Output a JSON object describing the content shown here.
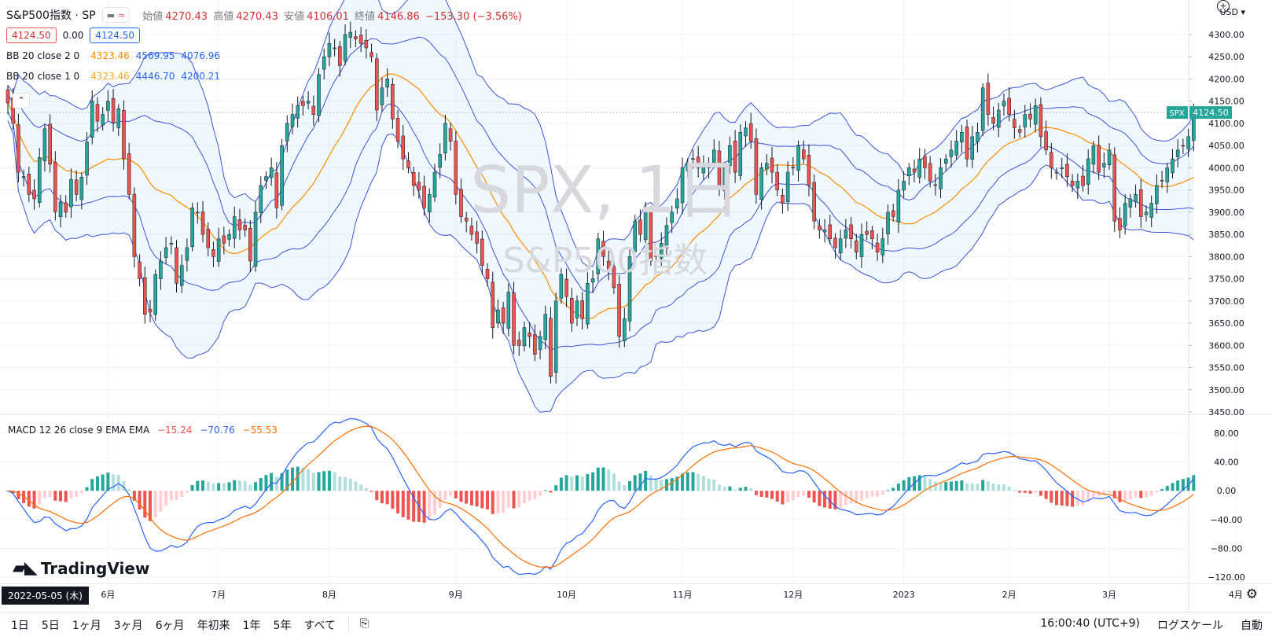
{
  "header": {
    "symbol": "S&P500指数 · SP",
    "open_label": "始値",
    "open": "4270.43",
    "high_label": "高値",
    "high": "4270.43",
    "low_label": "安値",
    "low": "4106.01",
    "close_label": "終値",
    "close": "4146.86",
    "change": "−153.30 (−3.56%)",
    "bid": "4124.50",
    "spread": "0.00",
    "ask": "4124.50"
  },
  "indicators": {
    "bb2": {
      "label": "BB 20 close 2 0",
      "mid": "4323.46",
      "upper": "4569.95",
      "lower": "4076.96"
    },
    "bb1": {
      "label": "BB 20 close 1 0",
      "mid": "4323.46",
      "upper": "4446.70",
      "lower": "4200.21"
    },
    "macd": {
      "label": "MACD 12 26 close 9 EMA EMA",
      "hist": "−15.24",
      "macd": "−70.76",
      "signal": "−55.53"
    }
  },
  "watermark": {
    "title": "SPX, 1日",
    "subtitle": "S&P500指数"
  },
  "logo": "TradingView",
  "price_tag": {
    "symbol": "SPX",
    "value": "4124.50"
  },
  "currency": "USD",
  "date_tag": "2022-05-05 (木)",
  "bottom_bar": {
    "ranges": [
      "1日",
      "5日",
      "1ヶ月",
      "3ヶ月",
      "6ヶ月",
      "年初来",
      "1年",
      "5年",
      "すべて"
    ],
    "time": "16:00:40 (UTC+9)",
    "log_scale": "ログスケール",
    "auto": "自動"
  },
  "colors": {
    "up": "#26a69a",
    "down": "#ef5350",
    "bb_line": "#3f51d8",
    "bb_mid": "#ff8a00",
    "macd_line": "#2962ff",
    "signal_line": "#ff6d00",
    "hist_up": "#26a69a",
    "hist_up_light": "#b2dfdb",
    "hist_down": "#ef5350",
    "hist_down_light": "#ffcdd2"
  },
  "chart_data": {
    "type": "candlestick",
    "price_axis": {
      "min": 3450,
      "max": 4300,
      "ticks": [
        4300,
        4250,
        4200,
        4150,
        4100,
        4050,
        4000,
        3950,
        3900,
        3850,
        3800,
        3750,
        3700,
        3650,
        3600,
        3550,
        3500,
        3450
      ]
    },
    "macd_axis": {
      "min": -120,
      "max": 80,
      "ticks": [
        80,
        40,
        0,
        -40,
        -80,
        -120
      ],
      "tick_labels": [
        "80.00",
        "40.00",
        "0.00",
        "−40.00",
        "−80.00",
        "−120.00"
      ]
    },
    "month_labels": [
      "6月",
      "7月",
      "8月",
      "9月",
      "10月",
      "11月",
      "12月",
      "2023",
      "2月",
      "3月",
      "4月"
    ],
    "month_index": [
      19,
      40,
      61,
      85,
      106,
      128,
      149,
      170,
      190,
      209,
      233
    ],
    "closes": [
      4146,
      4100,
      3990,
      3980,
      3940,
      3930,
      4023,
      4088,
      4008,
      3901,
      3923,
      3900,
      3974,
      3940,
      3979,
      4058,
      4150,
      4105,
      4120,
      4150,
      4101,
      4133,
      4020,
      3940,
      3800,
      3750,
      3670,
      3675,
      3760,
      3790,
      3820,
      3830,
      3740,
      3780,
      3820,
      3910,
      3900,
      3850,
      3820,
      3800,
      3840,
      3830,
      3850,
      3890,
      3860,
      3860,
      3790,
      3900,
      3960,
      3980,
      4000,
      3910,
      4050,
      4100,
      4120,
      4140,
      4140,
      4150,
      4120,
      4210,
      4250,
      4280,
      4270,
      4230,
      4300,
      4305,
      4290,
      4280,
      4270,
      4250,
      4130,
      4180,
      4200,
      4110,
      4060,
      4020,
      4000,
      3960,
      3950,
      3910,
      3940,
      3990,
      4030,
      4100,
      4060,
      3940,
      3890,
      3880,
      3850,
      3830,
      3780,
      3750,
      3640,
      3680,
      3650,
      3720,
      3600,
      3600,
      3640,
      3620,
      3580,
      3620,
      3670,
      3530,
      3700,
      3760,
      3710,
      3650,
      3700,
      3660,
      3740,
      3750,
      3840,
      3800,
      3770,
      3730,
      3620,
      3660,
      3800,
      3880,
      3850,
      3900,
      3790,
      3800,
      3830,
      3870,
      3900,
      3930,
      4000,
      4010,
      4020,
      4000,
      4010,
      4000,
      4040,
      3960,
      4000,
      4050,
      3990,
      4080,
      4090,
      4060,
      3940,
      4000,
      4010,
      3990,
      3950,
      3920,
      3990,
      4000,
      4050,
      4020,
      3960,
      3880,
      3860,
      3860,
      3840,
      3820,
      3840,
      3860,
      3840,
      3810,
      3850,
      3850,
      3840,
      3810,
      3840,
      3900,
      3890,
      3950,
      3970,
      4000,
      3990,
      4020,
      4000,
      3970,
      3960,
      4000,
      4020,
      4040,
      4060,
      4080,
      4020,
      4070,
      4080,
      4180,
      4120,
      4100,
      4130,
      4150,
      4120,
      4090,
      4080,
      4120,
      4110,
      4140,
      4070,
      4040,
      4000,
      3990,
      4000,
      3980,
      3960,
      3970,
      3960,
      4020,
      4050,
      3990,
      4010,
      4040,
      3880,
      3860,
      3920,
      3930,
      3940,
      3890,
      3900,
      3920,
      3960,
      3970,
      4000,
      4020,
      4040,
      4050,
      4070,
      4120
    ],
    "bb2": {
      "upper_last": 4569.95,
      "lower_last": 4076.96
    },
    "bb1": {
      "mid_last": 4323.46,
      "upper_last": 4446.7,
      "lower_last": 4200.21
    },
    "macd": {
      "hist_last": -15.24,
      "macd_last": -70.76,
      "signal_last": -55.53
    }
  }
}
